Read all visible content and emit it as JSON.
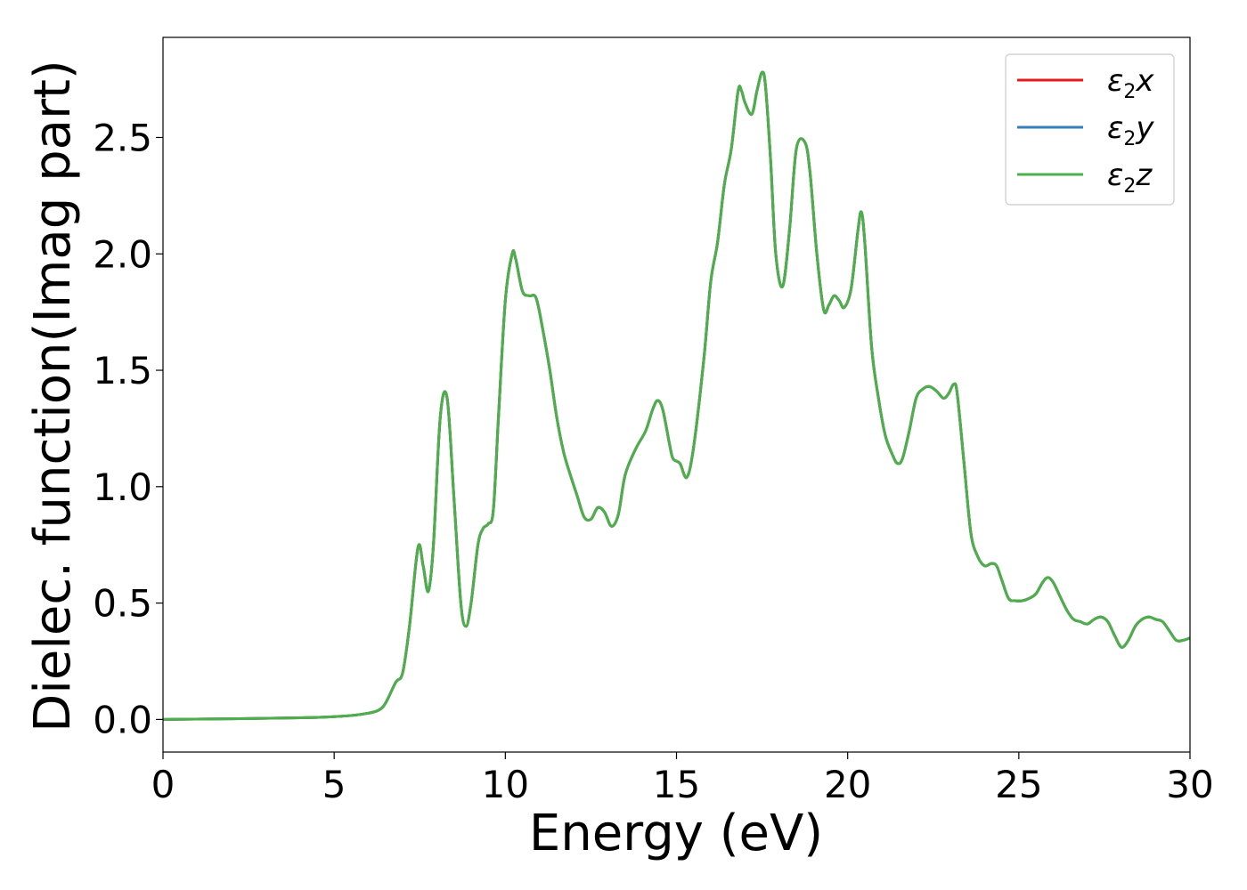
{
  "chart_data": {
    "type": "line",
    "title": "",
    "xlabel": "Energy (eV)",
    "ylabel": "Dielec. function(Imag part)",
    "xlim": [
      0,
      30
    ],
    "ylim": [
      -0.14,
      2.93
    ],
    "xticks": [
      0,
      5,
      10,
      15,
      20,
      25,
      30
    ],
    "xtick_labels": [
      "0",
      "5",
      "10",
      "15",
      "20",
      "25",
      "30"
    ],
    "yticks": [
      0.0,
      0.5,
      1.0,
      1.5,
      2.0,
      2.5
    ],
    "ytick_labels": [
      "0.0",
      "0.5",
      "1.0",
      "1.5",
      "2.0",
      "2.5"
    ],
    "grid": false,
    "legend_position": "top-right",
    "series": [
      {
        "name": "ε₂x",
        "legend_symbol": "ε",
        "legend_sub": "2",
        "legend_var": "x",
        "color": "#e41a1c",
        "x": [
          0,
          2,
          4,
          5,
          5.5,
          6,
          6.3,
          6.5,
          6.8,
          7.0,
          7.2,
          7.45,
          7.6,
          7.75,
          7.9,
          8.1,
          8.3,
          8.5,
          8.7,
          8.85,
          9.0,
          9.2,
          9.35,
          9.5,
          9.65,
          9.8,
          10.0,
          10.2,
          10.3,
          10.5,
          10.7,
          10.9,
          11.1,
          11.3,
          11.5,
          11.7,
          11.9,
          12.1,
          12.3,
          12.5,
          12.7,
          12.9,
          13.1,
          13.3,
          13.5,
          13.8,
          14.1,
          14.3,
          14.45,
          14.6,
          14.8,
          14.9,
          15.1,
          15.3,
          15.5,
          15.8,
          16.0,
          16.2,
          16.4,
          16.6,
          16.8,
          16.9,
          17.0,
          17.2,
          17.35,
          17.5,
          17.6,
          17.75,
          17.9,
          18.1,
          18.3,
          18.5,
          18.75,
          18.9,
          19.1,
          19.3,
          19.45,
          19.6,
          19.75,
          19.9,
          20.1,
          20.3,
          20.4,
          20.5,
          20.7,
          20.9,
          21.1,
          21.3,
          21.45,
          21.6,
          21.8,
          22.0,
          22.2,
          22.4,
          22.6,
          22.8,
          22.95,
          23.1,
          23.2,
          23.4,
          23.6,
          23.8,
          24.0,
          24.2,
          24.35,
          24.5,
          24.7,
          24.9,
          25.1,
          25.3,
          25.5,
          25.7,
          25.85,
          26.0,
          26.2,
          26.4,
          26.6,
          26.8,
          27.0,
          27.2,
          27.4,
          27.6,
          27.8,
          28.0,
          28.2,
          28.4,
          28.6,
          28.8,
          29.0,
          29.2,
          29.4,
          29.6,
          29.8,
          30.0
        ],
        "y": [
          0.0,
          0.003,
          0.007,
          0.012,
          0.017,
          0.027,
          0.04,
          0.07,
          0.16,
          0.2,
          0.4,
          0.74,
          0.66,
          0.55,
          0.75,
          1.3,
          1.38,
          0.95,
          0.5,
          0.4,
          0.5,
          0.75,
          0.82,
          0.84,
          0.9,
          1.3,
          1.8,
          2.0,
          1.98,
          1.84,
          1.82,
          1.81,
          1.67,
          1.5,
          1.3,
          1.15,
          1.05,
          0.96,
          0.87,
          0.86,
          0.91,
          0.89,
          0.83,
          0.88,
          1.05,
          1.16,
          1.24,
          1.33,
          1.37,
          1.33,
          1.18,
          1.12,
          1.1,
          1.04,
          1.17,
          1.55,
          1.88,
          2.05,
          2.3,
          2.45,
          2.7,
          2.7,
          2.65,
          2.6,
          2.7,
          2.78,
          2.72,
          2.4,
          2.0,
          1.86,
          2.1,
          2.45,
          2.48,
          2.35,
          2.0,
          1.76,
          1.78,
          1.82,
          1.8,
          1.77,
          1.85,
          2.1,
          2.18,
          2.05,
          1.6,
          1.38,
          1.22,
          1.14,
          1.1,
          1.12,
          1.24,
          1.38,
          1.42,
          1.43,
          1.41,
          1.38,
          1.4,
          1.44,
          1.4,
          1.1,
          0.8,
          0.7,
          0.66,
          0.67,
          0.66,
          0.6,
          0.52,
          0.51,
          0.51,
          0.52,
          0.54,
          0.59,
          0.61,
          0.59,
          0.53,
          0.47,
          0.43,
          0.42,
          0.41,
          0.43,
          0.44,
          0.42,
          0.36,
          0.31,
          0.34,
          0.4,
          0.43,
          0.44,
          0.43,
          0.42,
          0.38,
          0.34,
          0.34,
          0.35
        ]
      },
      {
        "name": "ε₂y",
        "legend_symbol": "ε",
        "legend_sub": "2",
        "legend_var": "y",
        "color": "#377eb8",
        "x": [
          0,
          2,
          4,
          5,
          5.5,
          6,
          6.3,
          6.5,
          6.8,
          7.0,
          7.2,
          7.45,
          7.6,
          7.75,
          7.9,
          8.1,
          8.3,
          8.5,
          8.7,
          8.85,
          9.0,
          9.2,
          9.35,
          9.5,
          9.65,
          9.8,
          10.0,
          10.2,
          10.3,
          10.5,
          10.7,
          10.9,
          11.1,
          11.3,
          11.5,
          11.7,
          11.9,
          12.1,
          12.3,
          12.5,
          12.7,
          12.9,
          13.1,
          13.3,
          13.5,
          13.8,
          14.1,
          14.3,
          14.45,
          14.6,
          14.8,
          14.9,
          15.1,
          15.3,
          15.5,
          15.8,
          16.0,
          16.2,
          16.4,
          16.6,
          16.8,
          16.9,
          17.0,
          17.2,
          17.35,
          17.5,
          17.6,
          17.75,
          17.9,
          18.1,
          18.3,
          18.5,
          18.75,
          18.9,
          19.1,
          19.3,
          19.45,
          19.6,
          19.75,
          19.9,
          20.1,
          20.3,
          20.4,
          20.5,
          20.7,
          20.9,
          21.1,
          21.3,
          21.45,
          21.6,
          21.8,
          22.0,
          22.2,
          22.4,
          22.6,
          22.8,
          22.95,
          23.1,
          23.2,
          23.4,
          23.6,
          23.8,
          24.0,
          24.2,
          24.35,
          24.5,
          24.7,
          24.9,
          25.1,
          25.3,
          25.5,
          25.7,
          25.85,
          26.0,
          26.2,
          26.4,
          26.6,
          26.8,
          27.0,
          27.2,
          27.4,
          27.6,
          27.8,
          28.0,
          28.2,
          28.4,
          28.6,
          28.8,
          29.0,
          29.2,
          29.4,
          29.6,
          29.8,
          30.0
        ],
        "y": [
          0.0,
          0.003,
          0.007,
          0.012,
          0.017,
          0.027,
          0.04,
          0.07,
          0.16,
          0.2,
          0.4,
          0.74,
          0.66,
          0.55,
          0.75,
          1.3,
          1.38,
          0.95,
          0.5,
          0.4,
          0.5,
          0.75,
          0.82,
          0.84,
          0.9,
          1.3,
          1.8,
          2.0,
          1.98,
          1.84,
          1.82,
          1.81,
          1.67,
          1.5,
          1.3,
          1.15,
          1.05,
          0.96,
          0.87,
          0.86,
          0.91,
          0.89,
          0.83,
          0.88,
          1.05,
          1.16,
          1.24,
          1.33,
          1.37,
          1.33,
          1.18,
          1.12,
          1.1,
          1.04,
          1.17,
          1.55,
          1.88,
          2.05,
          2.3,
          2.45,
          2.7,
          2.7,
          2.65,
          2.6,
          2.7,
          2.78,
          2.72,
          2.4,
          2.0,
          1.86,
          2.1,
          2.45,
          2.48,
          2.35,
          2.0,
          1.76,
          1.78,
          1.82,
          1.8,
          1.77,
          1.85,
          2.1,
          2.18,
          2.05,
          1.6,
          1.38,
          1.22,
          1.14,
          1.1,
          1.12,
          1.24,
          1.38,
          1.42,
          1.43,
          1.41,
          1.38,
          1.4,
          1.44,
          1.4,
          1.1,
          0.8,
          0.7,
          0.66,
          0.67,
          0.66,
          0.6,
          0.52,
          0.51,
          0.51,
          0.52,
          0.54,
          0.59,
          0.61,
          0.59,
          0.53,
          0.47,
          0.43,
          0.42,
          0.41,
          0.43,
          0.44,
          0.42,
          0.36,
          0.31,
          0.34,
          0.4,
          0.43,
          0.44,
          0.43,
          0.42,
          0.38,
          0.34,
          0.34,
          0.35
        ]
      },
      {
        "name": "ε₂z",
        "legend_symbol": "ε",
        "legend_sub": "2",
        "legend_var": "z",
        "color": "#4daf4a",
        "x": [
          0,
          2,
          4,
          5,
          5.5,
          6,
          6.3,
          6.5,
          6.8,
          7.0,
          7.2,
          7.45,
          7.6,
          7.75,
          7.9,
          8.1,
          8.3,
          8.5,
          8.7,
          8.85,
          9.0,
          9.2,
          9.35,
          9.5,
          9.65,
          9.8,
          10.0,
          10.2,
          10.3,
          10.5,
          10.7,
          10.9,
          11.1,
          11.3,
          11.5,
          11.7,
          11.9,
          12.1,
          12.3,
          12.5,
          12.7,
          12.9,
          13.1,
          13.3,
          13.5,
          13.8,
          14.1,
          14.3,
          14.45,
          14.6,
          14.8,
          14.9,
          15.1,
          15.3,
          15.5,
          15.8,
          16.0,
          16.2,
          16.4,
          16.6,
          16.8,
          16.9,
          17.0,
          17.2,
          17.35,
          17.5,
          17.6,
          17.75,
          17.9,
          18.1,
          18.3,
          18.5,
          18.75,
          18.9,
          19.1,
          19.3,
          19.45,
          19.6,
          19.75,
          19.9,
          20.1,
          20.3,
          20.4,
          20.5,
          20.7,
          20.9,
          21.1,
          21.3,
          21.45,
          21.6,
          21.8,
          22.0,
          22.2,
          22.4,
          22.6,
          22.8,
          22.95,
          23.1,
          23.2,
          23.4,
          23.6,
          23.8,
          24.0,
          24.2,
          24.35,
          24.5,
          24.7,
          24.9,
          25.1,
          25.3,
          25.5,
          25.7,
          25.85,
          26.0,
          26.2,
          26.4,
          26.6,
          26.8,
          27.0,
          27.2,
          27.4,
          27.6,
          27.8,
          28.0,
          28.2,
          28.4,
          28.6,
          28.8,
          29.0,
          29.2,
          29.4,
          29.6,
          29.8,
          30.0
        ],
        "y": [
          0.0,
          0.003,
          0.007,
          0.012,
          0.017,
          0.027,
          0.04,
          0.07,
          0.16,
          0.2,
          0.4,
          0.74,
          0.66,
          0.55,
          0.75,
          1.3,
          1.38,
          0.95,
          0.5,
          0.4,
          0.5,
          0.75,
          0.82,
          0.84,
          0.9,
          1.3,
          1.8,
          2.0,
          1.98,
          1.84,
          1.82,
          1.81,
          1.67,
          1.5,
          1.3,
          1.15,
          1.05,
          0.96,
          0.87,
          0.86,
          0.91,
          0.89,
          0.83,
          0.88,
          1.05,
          1.16,
          1.24,
          1.33,
          1.37,
          1.33,
          1.18,
          1.12,
          1.1,
          1.04,
          1.17,
          1.55,
          1.88,
          2.05,
          2.3,
          2.45,
          2.7,
          2.7,
          2.65,
          2.6,
          2.7,
          2.78,
          2.72,
          2.4,
          2.0,
          1.86,
          2.1,
          2.45,
          2.48,
          2.35,
          2.0,
          1.76,
          1.78,
          1.82,
          1.8,
          1.77,
          1.85,
          2.1,
          2.18,
          2.05,
          1.6,
          1.38,
          1.22,
          1.14,
          1.1,
          1.12,
          1.24,
          1.38,
          1.42,
          1.43,
          1.41,
          1.38,
          1.4,
          1.44,
          1.4,
          1.1,
          0.8,
          0.7,
          0.66,
          0.67,
          0.66,
          0.6,
          0.52,
          0.51,
          0.51,
          0.52,
          0.54,
          0.59,
          0.61,
          0.59,
          0.53,
          0.47,
          0.43,
          0.42,
          0.41,
          0.43,
          0.44,
          0.42,
          0.36,
          0.31,
          0.34,
          0.4,
          0.43,
          0.44,
          0.43,
          0.42,
          0.38,
          0.34,
          0.34,
          0.35
        ]
      }
    ]
  }
}
